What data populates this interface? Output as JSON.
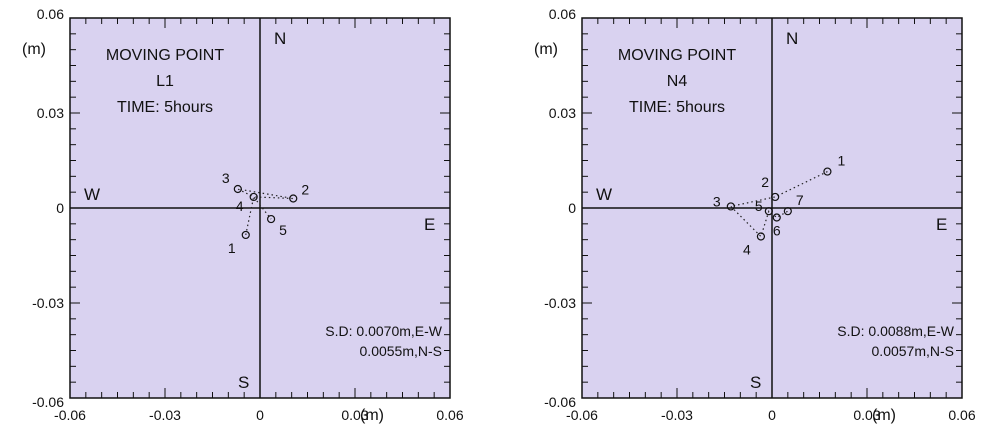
{
  "chart_data": [
    {
      "type": "scatter",
      "title": "",
      "annotation": [
        "MOVING POINT",
        "L1",
        "TIME: 5hours"
      ],
      "unit_label": "(m)",
      "xlim": [
        -0.06,
        0.06
      ],
      "ylim": [
        -0.06,
        0.06
      ],
      "x_ticks": [
        "-0.06",
        "-0.03",
        "0",
        "0.03",
        "0.06"
      ],
      "y_ticks": [
        "0.06",
        "0.03",
        "0",
        "-0.03",
        "-0.06"
      ],
      "compass": {
        "north": "N",
        "south": "S",
        "east": "E",
        "west": "W"
      },
      "points": [
        {
          "label": "1",
          "x": -0.0045,
          "y": -0.0085
        },
        {
          "label": "2",
          "x": 0.0105,
          "y": 0.003
        },
        {
          "label": "3",
          "x": -0.007,
          "y": 0.006
        },
        {
          "label": "4",
          "x": -0.002,
          "y": 0.0035
        },
        {
          "label": "5",
          "x": 0.0035,
          "y": -0.0035
        }
      ],
      "path_order": [
        "1",
        "4",
        "2",
        "3",
        "4",
        "5"
      ],
      "stats": [
        "S.D: 0.0070m,E-W",
        "0.0055m,N-S"
      ],
      "background": "#d9d2f0",
      "grid": false
    },
    {
      "type": "scatter",
      "title": "",
      "annotation": [
        "MOVING POINT",
        "N4",
        "TIME: 5hours"
      ],
      "unit_label": "(m)",
      "xlim": [
        -0.06,
        0.06
      ],
      "ylim": [
        -0.06,
        0.06
      ],
      "x_ticks": [
        "-0.06",
        "-0.03",
        "0",
        "0.03",
        "0.06"
      ],
      "y_ticks": [
        "0.06",
        "0.03",
        "0",
        "-0.03",
        "-0.06"
      ],
      "compass": {
        "north": "N",
        "south": "S",
        "east": "E",
        "west": "W"
      },
      "points": [
        {
          "label": "1",
          "x": 0.0175,
          "y": 0.0115
        },
        {
          "label": "2",
          "x": 0.001,
          "y": 0.0035
        },
        {
          "label": "3",
          "x": -0.013,
          "y": 0.0005
        },
        {
          "label": "4",
          "x": -0.0035,
          "y": -0.009
        },
        {
          "label": "5",
          "x": -0.001,
          "y": -0.001
        },
        {
          "label": "6",
          "x": 0.0015,
          "y": -0.003
        },
        {
          "label": "7",
          "x": 0.005,
          "y": -0.001
        }
      ],
      "path_order": [
        "1",
        "2",
        "3",
        "4",
        "5",
        "6",
        "7"
      ],
      "stats": [
        "S.D: 0.0088m,E-W",
        "0.0057m,N-S"
      ],
      "background": "#d9d2f0",
      "grid": false
    }
  ]
}
